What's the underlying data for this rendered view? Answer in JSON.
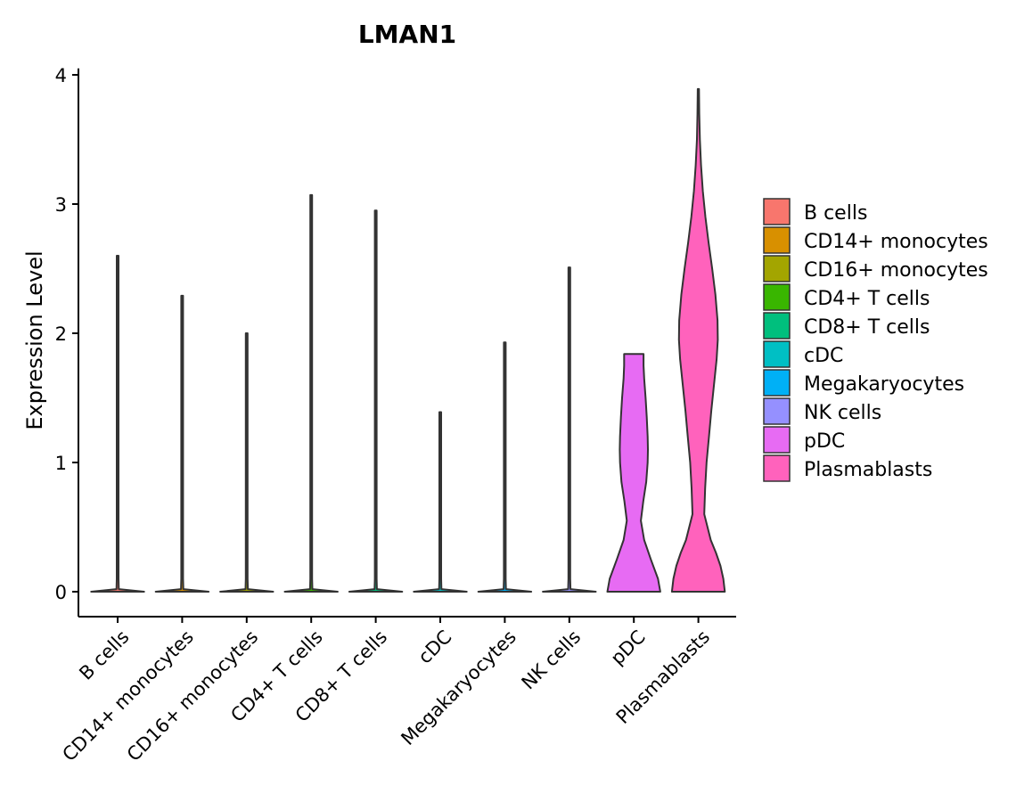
{
  "chart_data": {
    "type": "violin",
    "title": "LMAN1",
    "xlabel": "",
    "ylabel": "Expression Level",
    "ylim": [
      0,
      4.05
    ],
    "yticks": [
      0,
      1,
      2,
      3,
      4
    ],
    "grid": false,
    "legend_position": "right",
    "categories": [
      "B cells",
      "CD14+ monocytes",
      "CD16+ monocytes",
      "CD4+ T cells",
      "CD8+ T cells",
      "cDC",
      "Megakaryocytes",
      "NK cells",
      "pDC",
      "Plasmablasts"
    ],
    "colors": [
      "#F8766D",
      "#D89000",
      "#A3A500",
      "#39B600",
      "#00BF7D",
      "#00BFC4",
      "#00B0F6",
      "#9590FF",
      "#E76BF3",
      "#FF62BC"
    ],
    "max_values": [
      2.6,
      2.29,
      2.0,
      3.07,
      2.95,
      1.39,
      1.93,
      2.51,
      1.84,
      3.89
    ],
    "min_values": [
      0,
      0,
      0,
      0,
      0,
      0,
      0,
      0,
      0,
      0
    ],
    "density_profiles": [
      [
        [
          0,
          0.9
        ],
        [
          0.02,
          0.04
        ],
        [
          0.1,
          0.03
        ],
        [
          2.6,
          0.03
        ]
      ],
      [
        [
          0,
          0.9
        ],
        [
          0.02,
          0.04
        ],
        [
          0.1,
          0.03
        ],
        [
          2.29,
          0.03
        ]
      ],
      [
        [
          0,
          0.9
        ],
        [
          0.02,
          0.04
        ],
        [
          0.1,
          0.03
        ],
        [
          2.0,
          0.03
        ]
      ],
      [
        [
          0,
          0.9
        ],
        [
          0.02,
          0.04
        ],
        [
          0.1,
          0.03
        ],
        [
          3.07,
          0.03
        ]
      ],
      [
        [
          0,
          0.9
        ],
        [
          0.02,
          0.04
        ],
        [
          0.1,
          0.03
        ],
        [
          2.95,
          0.03
        ]
      ],
      [
        [
          0,
          0.9
        ],
        [
          0.02,
          0.04
        ],
        [
          0.1,
          0.03
        ],
        [
          1.39,
          0.03
        ]
      ],
      [
        [
          0,
          0.9
        ],
        [
          0.02,
          0.04
        ],
        [
          0.1,
          0.03
        ],
        [
          1.93,
          0.03
        ]
      ],
      [
        [
          0,
          0.9
        ],
        [
          0.02,
          0.04
        ],
        [
          0.1,
          0.03
        ],
        [
          2.51,
          0.03
        ]
      ],
      [
        [
          0,
          0.9
        ],
        [
          0.1,
          0.82
        ],
        [
          0.25,
          0.58
        ],
        [
          0.4,
          0.35
        ],
        [
          0.55,
          0.24
        ],
        [
          0.7,
          0.32
        ],
        [
          0.85,
          0.42
        ],
        [
          1.0,
          0.47
        ],
        [
          1.1,
          0.48
        ],
        [
          1.2,
          0.47
        ],
        [
          1.35,
          0.44
        ],
        [
          1.5,
          0.4
        ],
        [
          1.65,
          0.35
        ],
        [
          1.75,
          0.33
        ],
        [
          1.84,
          0.33
        ]
      ],
      [
        [
          0,
          0.9
        ],
        [
          0.1,
          0.85
        ],
        [
          0.2,
          0.75
        ],
        [
          0.3,
          0.6
        ],
        [
          0.4,
          0.42
        ],
        [
          0.6,
          0.2
        ],
        [
          0.8,
          0.23
        ],
        [
          1.0,
          0.28
        ],
        [
          1.2,
          0.36
        ],
        [
          1.4,
          0.44
        ],
        [
          1.6,
          0.53
        ],
        [
          1.8,
          0.62
        ],
        [
          1.95,
          0.66
        ],
        [
          2.1,
          0.65
        ],
        [
          2.3,
          0.58
        ],
        [
          2.5,
          0.47
        ],
        [
          2.7,
          0.35
        ],
        [
          2.9,
          0.24
        ],
        [
          3.1,
          0.15
        ],
        [
          3.3,
          0.09
        ],
        [
          3.5,
          0.05
        ],
        [
          3.7,
          0.03
        ],
        [
          3.89,
          0.02
        ]
      ]
    ]
  }
}
